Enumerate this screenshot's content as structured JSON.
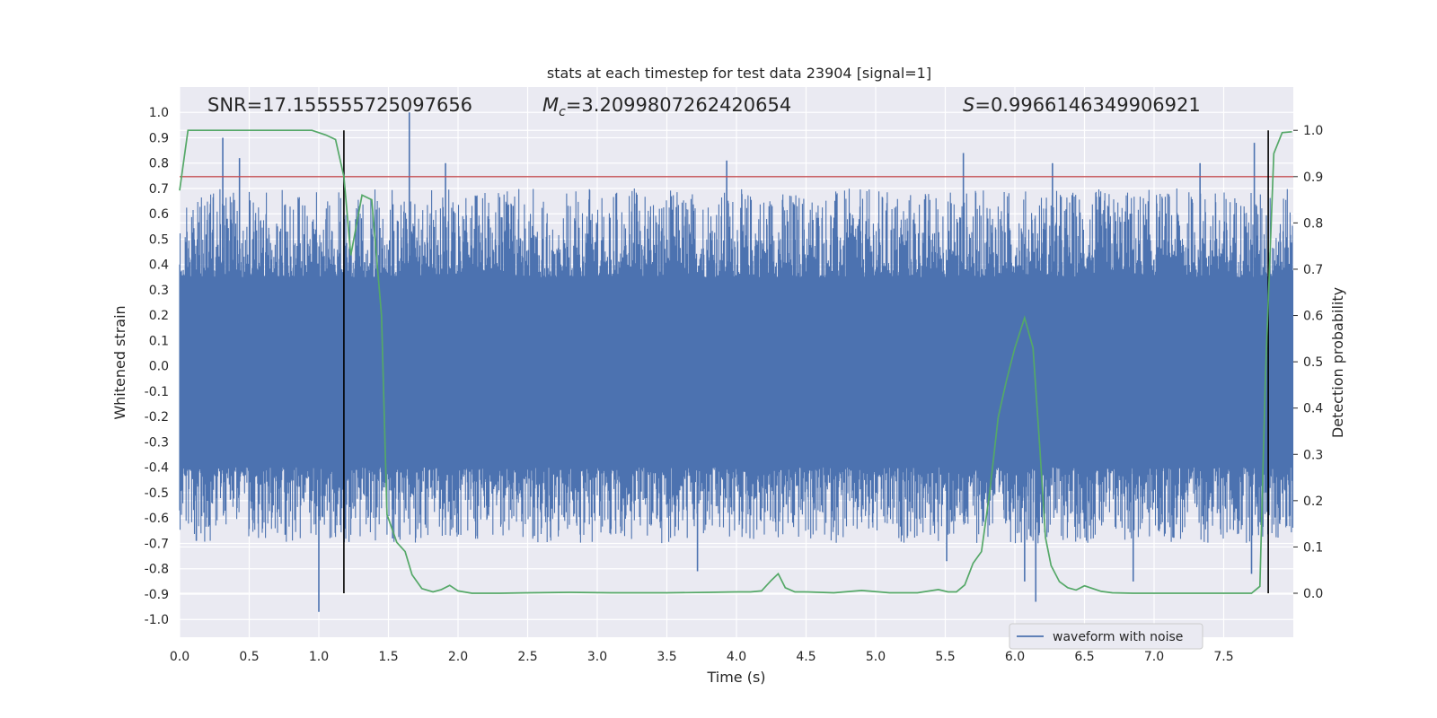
{
  "chart_data": {
    "type": "line",
    "title": "stats at each timestep for test data 23904 [signal=1]",
    "xlabel": "Time (s)",
    "ylabel_left": "Whitened strain",
    "ylabel_right": "Detection probability",
    "xlim": [
      0.0,
      8.0
    ],
    "ylim_left": [
      -1.07,
      1.1
    ],
    "ylim_right": [
      -0.095,
      1.0935
    ],
    "x_ticks": [
      "0.0",
      "0.5",
      "1.0",
      "1.5",
      "2.0",
      "2.5",
      "3.0",
      "3.5",
      "4.0",
      "4.5",
      "5.0",
      "5.5",
      "6.0",
      "6.5",
      "7.0",
      "7.5"
    ],
    "y_ticks_left": [
      "1.0",
      "0.9",
      "0.8",
      "0.7",
      "0.6",
      "0.5",
      "0.4",
      "0.3",
      "0.2",
      "0.1",
      "0.0",
      "-0.1",
      "-0.2",
      "-0.3",
      "-0.4",
      "-0.5",
      "-0.6",
      "-0.7",
      "-0.8",
      "-0.9",
      "-1.0"
    ],
    "y_ticks_right": [
      "1.0",
      "0.9",
      "0.8",
      "0.7",
      "0.6",
      "0.5",
      "0.4",
      "0.3",
      "0.2",
      "0.1",
      "0.0"
    ],
    "annotations": {
      "snr": "SNR=17.155555725097656",
      "mc_symbol": "M",
      "mc_sub": "c",
      "mc_value": "=3.2099807262420654",
      "s_symbol": "S",
      "s_value": "=0.9966146349906921"
    },
    "legend": [
      {
        "label": "waveform with noise",
        "color": "#4c72b0"
      }
    ],
    "threshold_line": {
      "y_right": 0.9,
      "color": "#c44e52"
    },
    "vertical_lines": [
      {
        "x": 1.18,
        "color": "#000000"
      },
      {
        "x": 7.82,
        "color": "#000000"
      }
    ],
    "series": [
      {
        "name": "waveform with noise",
        "axis": "left",
        "color": "#4c72b0",
        "kind": "noise",
        "envelope_pos": 0.35,
        "envelope_neg": -0.4,
        "spikes": [
          {
            "x": 0.31,
            "y": 0.9
          },
          {
            "x": 0.43,
            "y": 0.82
          },
          {
            "x": 1.0,
            "y": -0.97
          },
          {
            "x": 1.65,
            "y": 1.0
          },
          {
            "x": 1.91,
            "y": 0.8
          },
          {
            "x": 3.93,
            "y": 0.81
          },
          {
            "x": 3.72,
            "y": -0.81
          },
          {
            "x": 5.63,
            "y": 0.84
          },
          {
            "x": 6.15,
            "y": -0.93
          },
          {
            "x": 6.27,
            "y": 0.8
          },
          {
            "x": 7.33,
            "y": 0.8
          },
          {
            "x": 7.72,
            "y": 0.88
          },
          {
            "x": 7.7,
            "y": -0.82
          },
          {
            "x": 6.07,
            "y": -0.85
          },
          {
            "x": 5.51,
            "y": -0.77
          },
          {
            "x": 6.85,
            "y": -0.85
          },
          {
            "x": 1.53,
            "y": -0.68
          },
          {
            "x": 0.12,
            "y": -0.69
          }
        ]
      },
      {
        "name": "detection probability",
        "axis": "right",
        "color": "#55a868",
        "x": [
          0.0,
          0.06,
          0.2,
          0.4,
          0.6,
          0.8,
          0.95,
          1.05,
          1.12,
          1.18,
          1.23,
          1.31,
          1.38,
          1.45,
          1.49,
          1.56,
          1.62,
          1.67,
          1.74,
          1.82,
          1.88,
          1.94,
          2.0,
          2.1,
          2.3,
          2.5,
          2.8,
          3.1,
          3.5,
          3.8,
          4.0,
          4.1,
          4.18,
          4.25,
          4.3,
          4.35,
          4.42,
          4.5,
          4.7,
          4.9,
          5.1,
          5.3,
          5.45,
          5.52,
          5.58,
          5.64,
          5.7,
          5.76,
          5.82,
          5.88,
          5.94,
          6.0,
          6.07,
          6.13,
          6.18,
          6.22,
          6.26,
          6.32,
          6.38,
          6.44,
          6.5,
          6.56,
          6.62,
          6.7,
          6.85,
          7.0,
          7.2,
          7.4,
          7.6,
          7.7,
          7.76,
          7.8,
          7.86,
          7.92,
          7.99
        ],
        "y": [
          0.87,
          1.0,
          1.0,
          1.0,
          1.0,
          1.0,
          1.0,
          0.99,
          0.98,
          0.9,
          0.73,
          0.86,
          0.85,
          0.6,
          0.17,
          0.11,
          0.09,
          0.04,
          0.01,
          0.003,
          0.008,
          0.017,
          0.005,
          0.0,
          0.0,
          0.001,
          0.002,
          0.001,
          0.001,
          0.002,
          0.003,
          0.003,
          0.005,
          0.028,
          0.042,
          0.012,
          0.003,
          0.003,
          0.001,
          0.006,
          0.001,
          0.001,
          0.008,
          0.003,
          0.003,
          0.018,
          0.065,
          0.09,
          0.22,
          0.38,
          0.46,
          0.53,
          0.595,
          0.53,
          0.31,
          0.12,
          0.06,
          0.025,
          0.012,
          0.007,
          0.016,
          0.01,
          0.004,
          0.001,
          0.0,
          0.0,
          0.0,
          0.0,
          0.0,
          0.0,
          0.015,
          0.47,
          0.95,
          0.995,
          0.997
        ]
      }
    ]
  }
}
